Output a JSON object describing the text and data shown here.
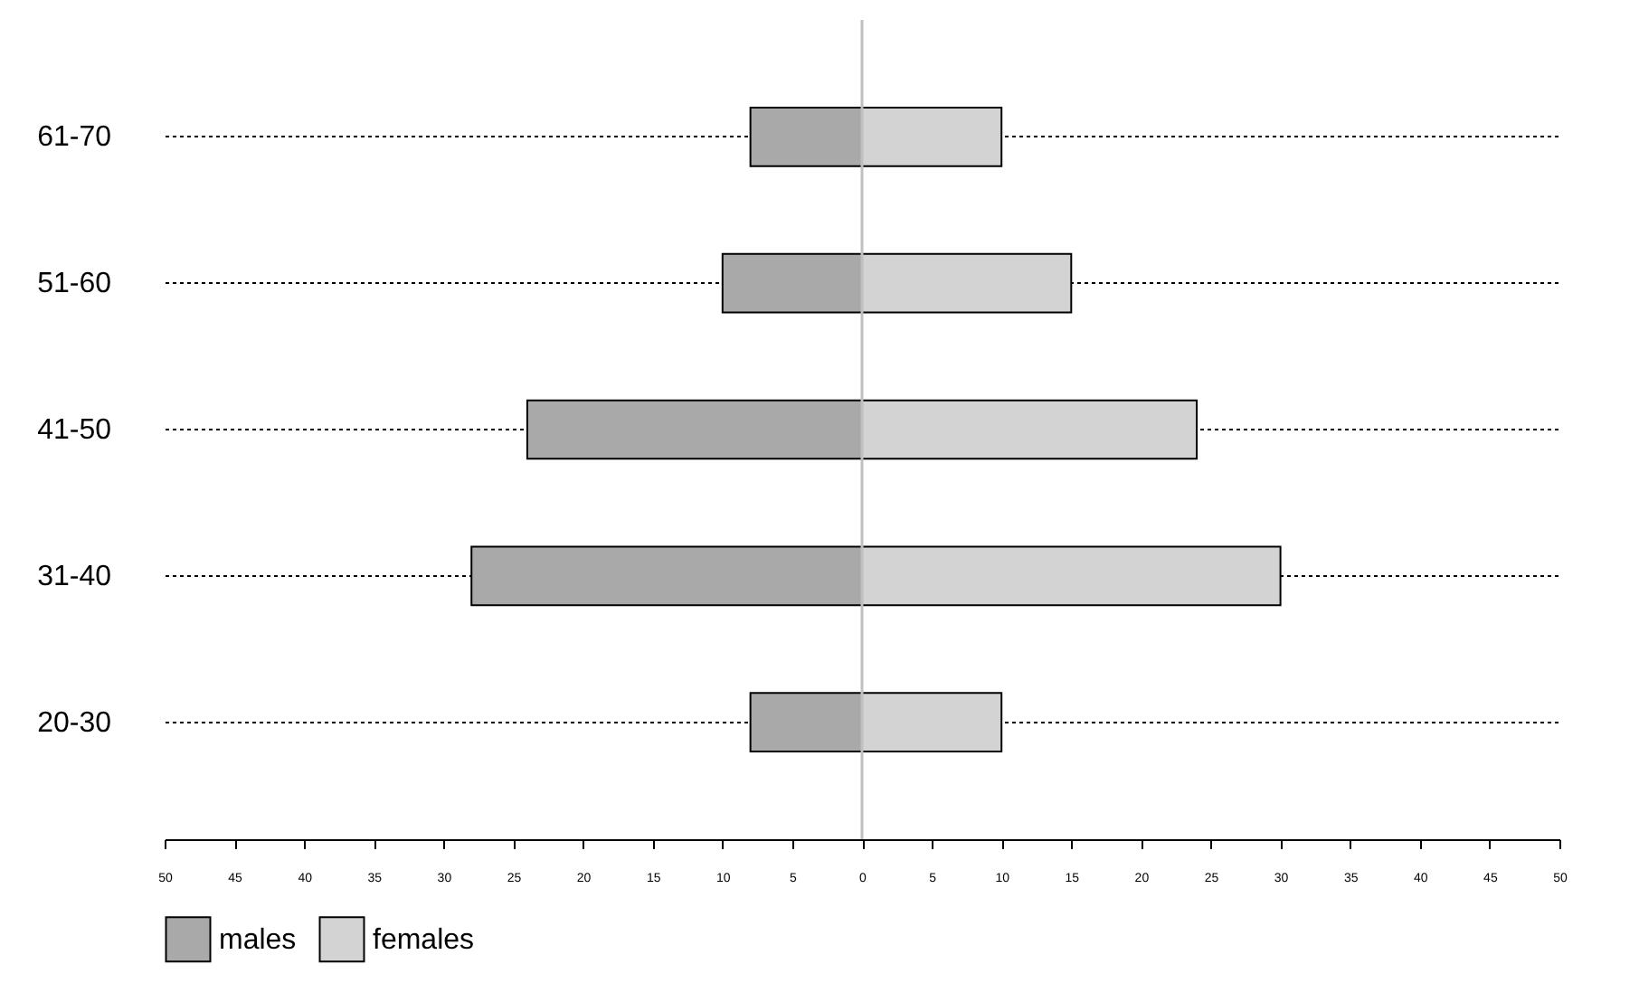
{
  "chart_data": {
    "type": "bar",
    "orientation": "horizontal",
    "stacked": true,
    "categories": [
      "61-70",
      "51-60",
      "41-50",
      "31-40",
      "20-30"
    ],
    "series": [
      {
        "name": "males",
        "color": "#a9a9a9",
        "values": [
          -8,
          -10,
          -24,
          -28,
          -8
        ]
      },
      {
        "name": "females",
        "color": "#d3d3d3",
        "values": [
          10,
          15,
          24,
          30,
          10
        ]
      }
    ],
    "xlim": [
      -50,
      50
    ],
    "xticks": [
      {
        "value": -50,
        "label": "50"
      },
      {
        "value": -45,
        "label": "45"
      },
      {
        "value": -40,
        "label": "40"
      },
      {
        "value": -35,
        "label": "35"
      },
      {
        "value": -30,
        "label": "30"
      },
      {
        "value": -25,
        "label": "25"
      },
      {
        "value": -20,
        "label": "20"
      },
      {
        "value": -15,
        "label": "15"
      },
      {
        "value": -10,
        "label": "10"
      },
      {
        "value": -5,
        "label": "5"
      },
      0,
      5,
      10,
      15,
      20,
      25,
      30,
      35,
      40,
      45,
      50
    ],
    "ref_lines": [
      {
        "axis": "x",
        "value": 0,
        "color": "#c0c0c0"
      }
    ],
    "grid": "y",
    "legend": "bottom"
  }
}
